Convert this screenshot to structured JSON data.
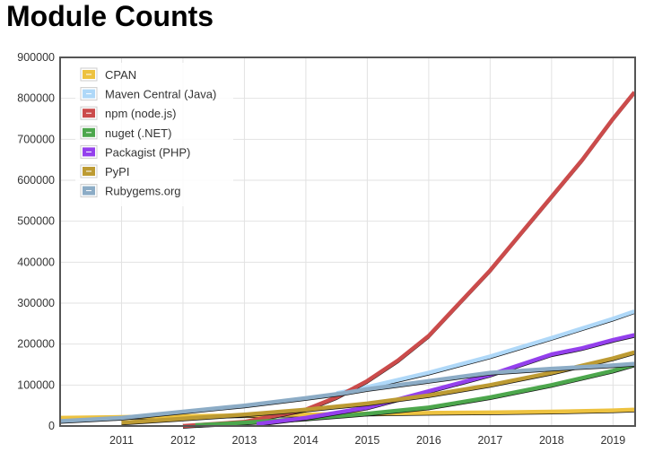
{
  "chart_data": {
    "type": "line",
    "title": "Module Counts",
    "xlim": [
      2010.0,
      2019.36
    ],
    "ylim": [
      0,
      900000
    ],
    "xticks": [
      "2011",
      "2012",
      "2013",
      "2014",
      "2015",
      "2016",
      "2017",
      "2018",
      "2019"
    ],
    "yticks": [
      "0",
      "100000",
      "200000",
      "300000",
      "400000",
      "500000",
      "600000",
      "700000",
      "800000",
      "900000"
    ],
    "grid": true,
    "legend_position": "top-left",
    "series": [
      {
        "name": "CPAN",
        "color": "#edc240",
        "points": [
          [
            2010,
            20000
          ],
          [
            2011,
            22000
          ],
          [
            2012,
            24000
          ],
          [
            2013,
            26000
          ],
          [
            2014,
            28000
          ],
          [
            2015,
            30000
          ],
          [
            2016,
            32000
          ],
          [
            2017,
            33000
          ],
          [
            2018,
            35000
          ],
          [
            2019,
            38000
          ],
          [
            2019.35,
            40000
          ]
        ]
      },
      {
        "name": "Maven Central (Java)",
        "color": "#afd8f8",
        "points": [
          [
            2014.5,
            80000
          ],
          [
            2015,
            95000
          ],
          [
            2016,
            130000
          ],
          [
            2017,
            170000
          ],
          [
            2018,
            215000
          ],
          [
            2019,
            262000
          ],
          [
            2019.35,
            280000
          ]
        ]
      },
      {
        "name": "npm (node.js)",
        "color": "#cb4b4b",
        "points": [
          [
            2012,
            0
          ],
          [
            2013,
            10000
          ],
          [
            2014,
            40000
          ],
          [
            2014.5,
            70000
          ],
          [
            2015,
            110000
          ],
          [
            2015.5,
            160000
          ],
          [
            2016,
            220000
          ],
          [
            2016.5,
            300000
          ],
          [
            2017,
            380000
          ],
          [
            2017.5,
            470000
          ],
          [
            2018,
            560000
          ],
          [
            2018.5,
            650000
          ],
          [
            2019,
            750000
          ],
          [
            2019.35,
            815000
          ]
        ]
      },
      {
        "name": "nuget (.NET)",
        "color": "#4da74d",
        "points": [
          [
            2012.2,
            2000
          ],
          [
            2013,
            8000
          ],
          [
            2014,
            18000
          ],
          [
            2015,
            30000
          ],
          [
            2016,
            45000
          ],
          [
            2017,
            70000
          ],
          [
            2018,
            100000
          ],
          [
            2019,
            135000
          ],
          [
            2019.35,
            150000
          ]
        ]
      },
      {
        "name": "Packagist (PHP)",
        "color": "#9440ed",
        "points": [
          [
            2013.2,
            5000
          ],
          [
            2014,
            20000
          ],
          [
            2015,
            45000
          ],
          [
            2016,
            85000
          ],
          [
            2017,
            125000
          ],
          [
            2018,
            175000
          ],
          [
            2018.5,
            190000
          ],
          [
            2019,
            210000
          ],
          [
            2019.35,
            222000
          ]
        ]
      },
      {
        "name": "PyPI",
        "color": "#bd9b33",
        "points": [
          [
            2011,
            8000
          ],
          [
            2012,
            18000
          ],
          [
            2013,
            28000
          ],
          [
            2014,
            40000
          ],
          [
            2015,
            55000
          ],
          [
            2016,
            75000
          ],
          [
            2017,
            100000
          ],
          [
            2018,
            130000
          ],
          [
            2019,
            165000
          ],
          [
            2019.35,
            180000
          ]
        ]
      },
      {
        "name": "Rubygems.org",
        "color": "#8cacc6",
        "points": [
          [
            2010,
            12000
          ],
          [
            2011,
            20000
          ],
          [
            2012,
            35000
          ],
          [
            2013,
            50000
          ],
          [
            2014,
            68000
          ],
          [
            2014.6,
            80000
          ],
          [
            2015,
            90000
          ],
          [
            2016,
            110000
          ],
          [
            2017,
            130000
          ],
          [
            2018,
            140000
          ],
          [
            2019,
            148000
          ],
          [
            2019.35,
            152000
          ]
        ]
      }
    ]
  }
}
